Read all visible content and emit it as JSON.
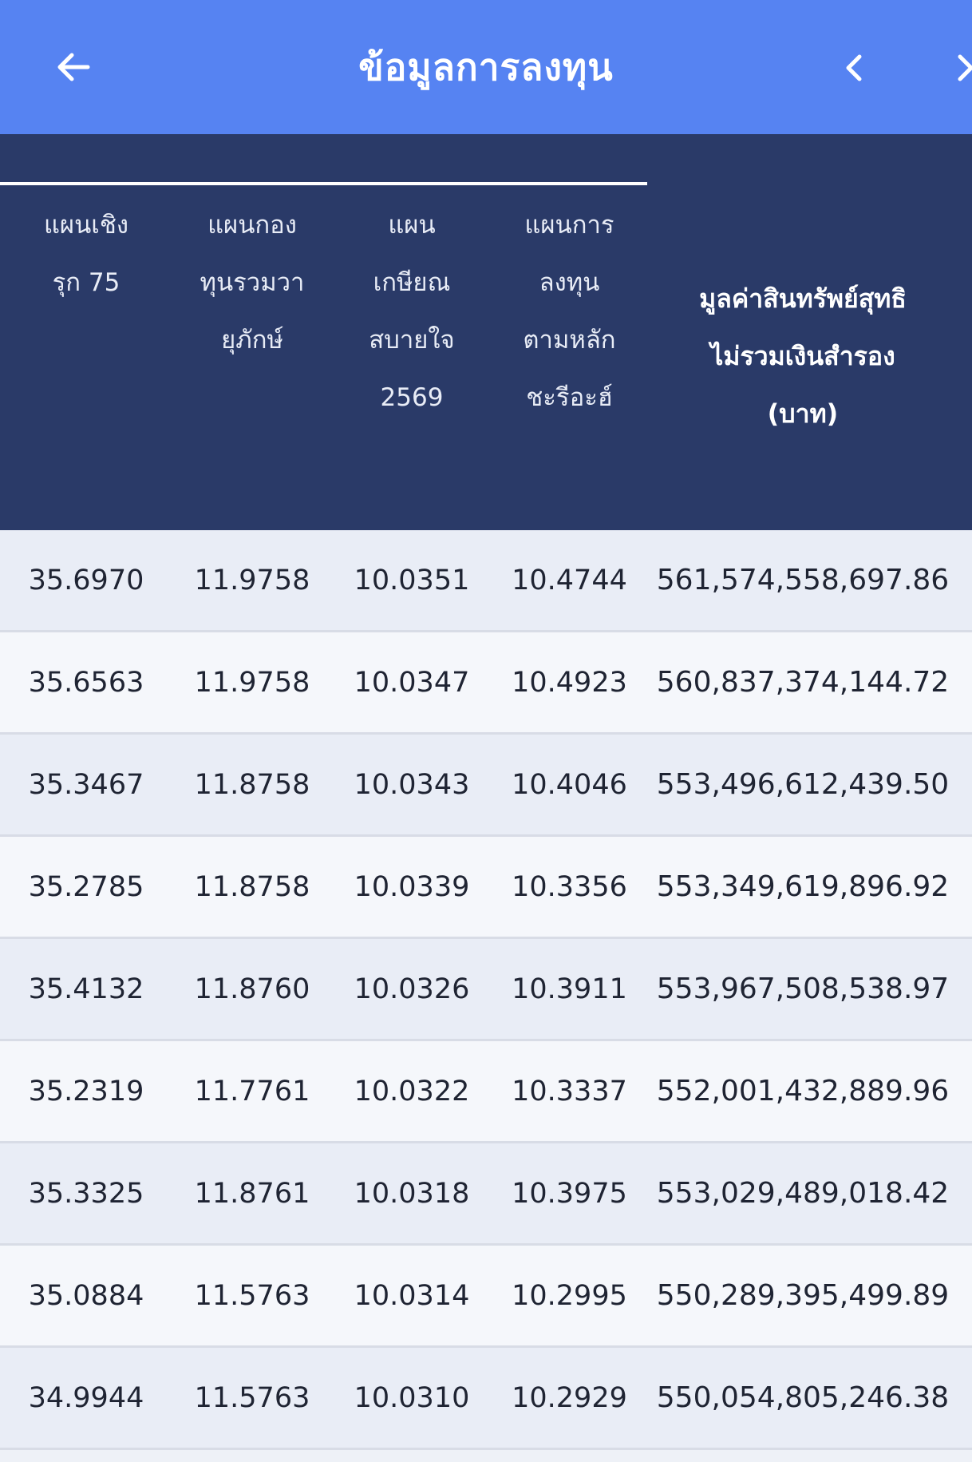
{
  "header": {
    "title": "ข้อมูลการลงทุน",
    "back_icon": "arrow-left-icon",
    "prev_icon": "chevron-left-icon",
    "next_icon": "chevron-right-icon",
    "background": "#5683f2"
  },
  "table": {
    "header_background": "#2a3a68",
    "columns": [
      "แผนเชิง\nรุก 75",
      "แผนกอง\nทุนรวมวา\nยุภักษ์",
      "แผน\nเกษียณ\nสบายใจ\n2569",
      "แผนการ\nลงทุน\nตามหลัก\nชะรีอะฮ์",
      "มูลค่าสินทรัพย์สุทธิ\nไม่รวมเงินสำรอง\n(บาท)"
    ],
    "rows": [
      [
        "35.6970",
        "11.9758",
        "10.0351",
        "10.4744",
        "561,574,558,697.86"
      ],
      [
        "35.6563",
        "11.9758",
        "10.0347",
        "10.4923",
        "560,837,374,144.72"
      ],
      [
        "35.3467",
        "11.8758",
        "10.0343",
        "10.4046",
        "553,496,612,439.50"
      ],
      [
        "35.2785",
        "11.8758",
        "10.0339",
        "10.3356",
        "553,349,619,896.92"
      ],
      [
        "35.4132",
        "11.8760",
        "10.0326",
        "10.3911",
        "553,967,508,538.97"
      ],
      [
        "35.2319",
        "11.7761",
        "10.0322",
        "10.3337",
        "552,001,432,889.96"
      ],
      [
        "35.3325",
        "11.8761",
        "10.0318",
        "10.3975",
        "553,029,489,018.42"
      ],
      [
        "35.0884",
        "11.5763",
        "10.0314",
        "10.2995",
        "550,289,395,499.89"
      ],
      [
        "34.9944",
        "11.5763",
        "10.0310",
        "10.2929",
        "550,054,805,246.38"
      ]
    ]
  }
}
